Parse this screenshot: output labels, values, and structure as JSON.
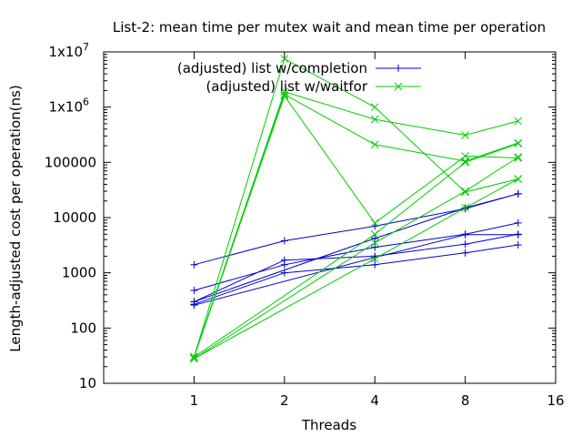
{
  "chart_data": {
    "type": "line",
    "title": "List-2: mean time per mutex wait and mean time per operation",
    "xlabel": "Threads",
    "ylabel": "Length-adjusted cost per operation(ns)",
    "x_scale": "log2",
    "y_scale": "log10",
    "xlim": [
      0.5,
      16
    ],
    "ylim": [
      10,
      10000000
    ],
    "x_ticks": [
      1,
      2,
      4,
      8,
      16
    ],
    "x_tick_labels": [
      "1",
      "2",
      "4",
      "8",
      "16"
    ],
    "y_ticks": [
      10,
      100,
      1000,
      10000,
      100000,
      1000000,
      10000000
    ],
    "y_tick_labels": [
      "10",
      "100",
      "1000",
      "10000",
      "100000",
      "1x10",
      "1x10"
    ],
    "y_tick_exponents": [
      "",
      "",
      "",
      "",
      "",
      "6",
      "7"
    ],
    "grid": false,
    "legend_position": "top-right",
    "series": [
      {
        "name": "(adjusted) list w/completion",
        "color": "#0000cc",
        "marker": "plus",
        "lines": [
          {
            "x": [
              1,
              2,
              4,
              8,
              12
            ],
            "y": [
              1400,
              3800,
              7000,
              14500,
              27000
            ]
          },
          {
            "x": [
              1,
              2,
              4,
              8,
              12
            ],
            "y": [
              480,
              1400,
              2900,
              5000,
              8000
            ]
          },
          {
            "x": [
              1,
              2,
              4,
              8,
              12
            ],
            "y": [
              300,
              1700,
              2000,
              3300,
              5000
            ]
          },
          {
            "x": [
              1,
              2,
              4,
              8,
              12
            ],
            "y": [
              270,
              1000,
              1400,
              2300,
              3200
            ]
          },
          {
            "x": [
              1,
              4,
              8,
              12
            ],
            "y": [
              260,
              1900,
              4900,
              4900
            ]
          },
          {
            "x": [
              1,
              4,
              8,
              12
            ],
            "y": [
              300,
              4200,
              15000,
              27000
            ]
          }
        ]
      },
      {
        "name": "(adjusted) list w/waitfor",
        "color": "#00cc00",
        "marker": "cross",
        "lines": [
          {
            "x": [
              1,
              2,
              4,
              8,
              12
            ],
            "y": [
              30,
              7500000,
              1000000,
              29000,
              50000
            ]
          },
          {
            "x": [
              1,
              2,
              4,
              8,
              12
            ],
            "y": [
              30,
              1900000,
              600000,
              310000,
              560000
            ]
          },
          {
            "x": [
              1,
              2,
              4,
              8,
              12
            ],
            "y": [
              30,
              1700000,
              210000,
              105000,
              225000
            ]
          },
          {
            "x": [
              1,
              2,
              4,
              8,
              12
            ],
            "y": [
              30,
              1600000,
              8000,
              130000,
              120000
            ]
          },
          {
            "x": [
              1,
              4,
              8,
              12
            ],
            "y": [
              28,
              1800,
              15000,
              50000
            ]
          },
          {
            "x": [
              1,
              4,
              8,
              12
            ],
            "y": [
              28,
              3500,
              30000,
              125000
            ]
          },
          {
            "x": [
              1,
              4,
              8,
              12
            ],
            "y": [
              30,
              5000,
              100000,
              220000
            ]
          }
        ]
      }
    ]
  }
}
